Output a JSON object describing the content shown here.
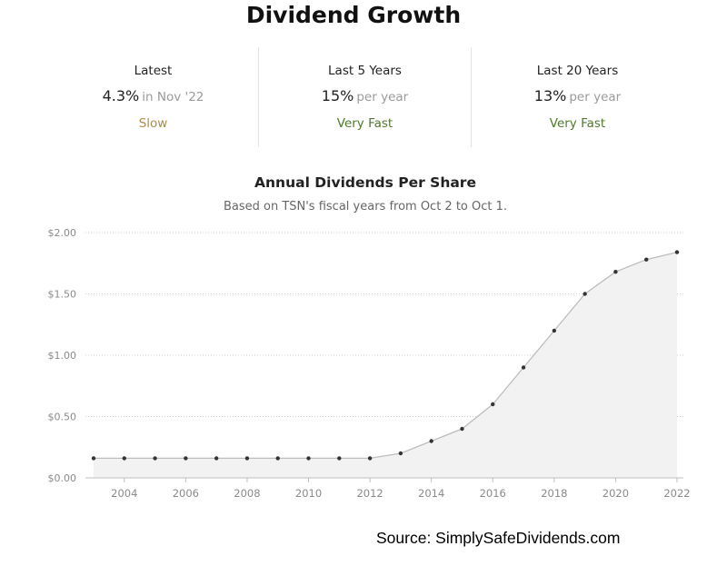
{
  "header": {
    "title": "Dividend Growth"
  },
  "stats": [
    {
      "label": "Latest",
      "value": "4.3%",
      "sub": "in Nov '22",
      "rating": "Slow"
    },
    {
      "label": "Last 5 Years",
      "value": "15%",
      "sub": "per year",
      "rating": "Very Fast"
    },
    {
      "label": "Last 20 Years",
      "value": "13%",
      "sub": "per year",
      "rating": "Very Fast"
    }
  ],
  "colors": {
    "slow": "#b08a4a",
    "very_fast": "#4f7a2d",
    "line": "#bdbdbd",
    "area": "#f2f2f2",
    "point": "#333333",
    "grid": "#cfcfcf"
  },
  "chart_data": {
    "type": "area",
    "title": "Annual Dividends Per Share",
    "subtitle": "Based on TSN's fiscal years from Oct 2 to Oct 1.",
    "xlabel": "",
    "ylabel": "",
    "x": [
      2003,
      2004,
      2005,
      2006,
      2007,
      2008,
      2009,
      2010,
      2011,
      2012,
      2013,
      2014,
      2015,
      2016,
      2017,
      2018,
      2019,
      2020,
      2021,
      2022
    ],
    "values": [
      0.16,
      0.16,
      0.16,
      0.16,
      0.16,
      0.16,
      0.16,
      0.16,
      0.16,
      0.16,
      0.2,
      0.3,
      0.4,
      0.6,
      0.9,
      1.2,
      1.5,
      1.68,
      1.78,
      1.84
    ],
    "ylim": [
      0,
      2.0
    ],
    "xlim": [
      2003,
      2022
    ],
    "y_ticks": [
      0,
      0.5,
      1.0,
      1.5,
      2.0
    ],
    "y_tick_labels": [
      "$0.00",
      "$0.50",
      "$1.00",
      "$1.50",
      "$2.00"
    ],
    "x_ticks": [
      2004,
      2006,
      2008,
      2010,
      2012,
      2014,
      2016,
      2018,
      2020,
      2022
    ],
    "x_tick_labels": [
      "2004",
      "2006",
      "2008",
      "2010",
      "2012",
      "2014",
      "2016",
      "2018",
      "2020",
      "2022"
    ],
    "grid": true,
    "legend": "none"
  },
  "footer": {
    "source": "Source: SimplySafeDividends.com"
  }
}
